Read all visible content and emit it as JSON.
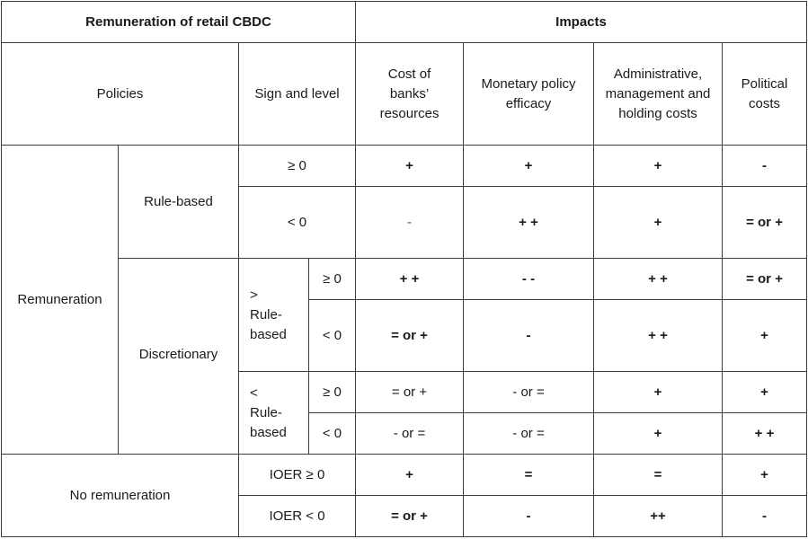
{
  "header": {
    "left_title": "Remuneration of retail CBDC",
    "right_title": "Impacts"
  },
  "subheader": {
    "policies": "Policies",
    "sign_and_level": "Sign and level",
    "cost_of_banks_resources": "Cost of banks’ resources",
    "monetary_policy_efficacy": "Monetary policy efficacy",
    "admin_costs": "Administrative, management and holding costs",
    "political_costs": "Political costs"
  },
  "labels": {
    "remuneration": "Remuneration",
    "rule_based": "Rule-based",
    "discretionary": "Discretionary",
    "gt_rule_based": "> Rule-based",
    "lt_rule_based": "< Rule-based",
    "no_remuneration": "No remuneration"
  },
  "rows": [
    {
      "sign": "≥ 0",
      "cost": "+",
      "monetary": "+",
      "admin": "+",
      "political": "-"
    },
    {
      "sign": "< 0",
      "cost": "-",
      "monetary": "+ +",
      "admin": "+",
      "political": "= or +"
    },
    {
      "sign": "≥ 0",
      "cost": "+ +",
      "monetary": "- -",
      "admin": "+ +",
      "political": "= or +"
    },
    {
      "sign": "< 0",
      "cost": "= or +",
      "monetary": "-",
      "admin": "+ +",
      "political": "+"
    },
    {
      "sign": "≥ 0",
      "cost": "= or +",
      "monetary": "- or =",
      "admin": "+",
      "political": "+"
    },
    {
      "sign": "< 0",
      "cost": "- or =",
      "monetary": "- or =",
      "admin": "+",
      "political": "+ +"
    },
    {
      "sign": "IOER ≥ 0",
      "cost": "+",
      "monetary": "=",
      "admin": "=",
      "political": "+"
    },
    {
      "sign": "IOER < 0",
      "cost": "= or +",
      "monetary": "-",
      "admin": "++",
      "political": "-"
    }
  ]
}
